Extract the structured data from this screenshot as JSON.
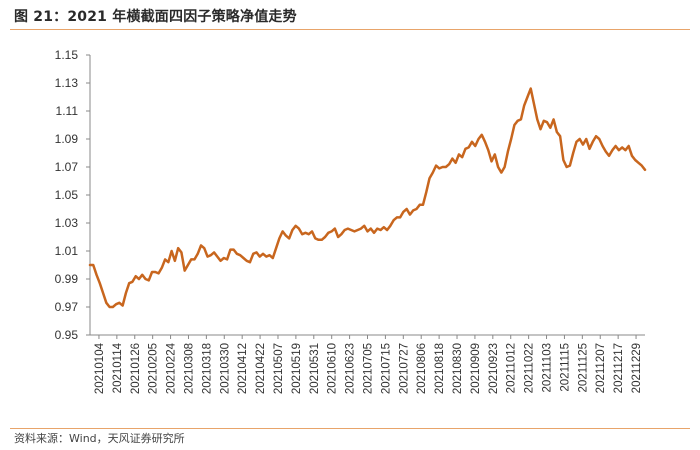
{
  "figure": {
    "title": "图 21：2021 年横截面四因子策略净值走势",
    "source": "资料来源：Wind，天风证券研究所"
  },
  "chart_data": {
    "type": "line",
    "title": "",
    "xlabel": "",
    "ylabel": "",
    "ylim": [
      0.95,
      1.15
    ],
    "yticks": [
      "1.15",
      "1.13",
      "1.11",
      "1.09",
      "1.07",
      "1.05",
      "1.03",
      "1.01",
      "0.99",
      "0.97",
      "0.95"
    ],
    "xtick_labels": [
      "20210104",
      "20210114",
      "20210126",
      "20210205",
      "20210224",
      "20210308",
      "20210318",
      "20210330",
      "20210412",
      "20210422",
      "20210507",
      "20210519",
      "20210531",
      "20210610",
      "20210623",
      "20210705",
      "20210715",
      "20210727",
      "20210806",
      "20210818",
      "20210830",
      "20210909",
      "20210923",
      "20211012",
      "20211022",
      "20211103",
      "20211115",
      "20211125",
      "20211207",
      "20211217",
      "20211229"
    ],
    "grid": false,
    "legend": "none",
    "line_color": "#c8661e",
    "series": [
      {
        "values": [
          1.0,
          1.0,
          0.993,
          0.987,
          0.98,
          0.973,
          0.97,
          0.97,
          0.972,
          0.973,
          0.971,
          0.98,
          0.987,
          0.988,
          0.992,
          0.99,
          0.993,
          0.99,
          0.989,
          0.995,
          0.995,
          0.994,
          0.998,
          1.004,
          1.002,
          1.01,
          1.003,
          1.012,
          1.009,
          0.996,
          1.0,
          1.004,
          1.004,
          1.008,
          1.014,
          1.012,
          1.006,
          1.007,
          1.009,
          1.006,
          1.003,
          1.005,
          1.004,
          1.011,
          1.011,
          1.008,
          1.007,
          1.005,
          1.003,
          1.002,
          1.008,
          1.009,
          1.006,
          1.008,
          1.006,
          1.007,
          1.005,
          1.012,
          1.019,
          1.024,
          1.021,
          1.019,
          1.025,
          1.028,
          1.026,
          1.022,
          1.023,
          1.022,
          1.024,
          1.019,
          1.018,
          1.018,
          1.02,
          1.023,
          1.024,
          1.026,
          1.02,
          1.022,
          1.025,
          1.026,
          1.025,
          1.024,
          1.025,
          1.026,
          1.028,
          1.024,
          1.026,
          1.023,
          1.026,
          1.025,
          1.027,
          1.025,
          1.028,
          1.032,
          1.034,
          1.034,
          1.038,
          1.04,
          1.036,
          1.039,
          1.04,
          1.043,
          1.043,
          1.052,
          1.062,
          1.066,
          1.071,
          1.069,
          1.07,
          1.07,
          1.072,
          1.076,
          1.073,
          1.079,
          1.077,
          1.083,
          1.084,
          1.088,
          1.085,
          1.09,
          1.093,
          1.088,
          1.082,
          1.074,
          1.079,
          1.07,
          1.066,
          1.07,
          1.081,
          1.09,
          1.1,
          1.103,
          1.104,
          1.114,
          1.12,
          1.126,
          1.115,
          1.104,
          1.097,
          1.103,
          1.102,
          1.098,
          1.104,
          1.095,
          1.092,
          1.075,
          1.07,
          1.071,
          1.08,
          1.088,
          1.09,
          1.086,
          1.09,
          1.083,
          1.088,
          1.092,
          1.09,
          1.085,
          1.081,
          1.078,
          1.082,
          1.085,
          1.082,
          1.084,
          1.082,
          1.085,
          1.078,
          1.075,
          1.073,
          1.071,
          1.068
        ]
      }
    ]
  }
}
